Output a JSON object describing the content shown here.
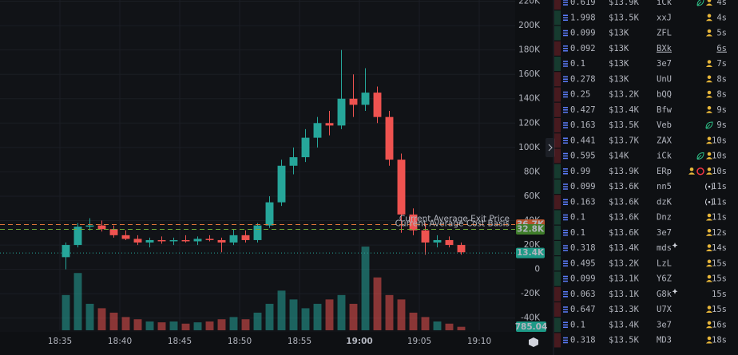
{
  "chart_data": {
    "type": "candlestick",
    "x": [
      "18:35",
      "18:36",
      "18:37",
      "18:38",
      "18:39",
      "18:40",
      "18:41",
      "18:42",
      "18:43",
      "18:44",
      "18:45",
      "18:46",
      "18:47",
      "18:48",
      "18:49",
      "18:50",
      "18:51",
      "18:52",
      "18:53",
      "18:54",
      "18:55",
      "18:56",
      "18:57",
      "18:58",
      "18:59",
      "19:00",
      "19:01",
      "19:02",
      "19:03",
      "19:04",
      "19:05",
      "19:06",
      "19:07",
      "19:08"
    ],
    "open": [
      10000,
      20000,
      35000,
      36000,
      33000,
      28000,
      25000,
      22000,
      24000,
      23000,
      24000,
      23000,
      25000,
      24000,
      22000,
      28000,
      24000,
      36000,
      55000,
      85000,
      92000,
      108000,
      120000,
      118000,
      140000,
      135000,
      145000,
      125000,
      90000,
      45000,
      32000,
      22000,
      24000,
      20000
    ],
    "high": [
      22000,
      38000,
      42000,
      40000,
      36000,
      32000,
      28000,
      26000,
      27000,
      26000,
      28000,
      27000,
      28000,
      26000,
      33000,
      32000,
      38000,
      60000,
      90000,
      100000,
      115000,
      125000,
      130000,
      180000,
      160000,
      165000,
      150000,
      130000,
      95000,
      50000,
      38000,
      28000,
      27000,
      22000
    ],
    "low": [
      0,
      18000,
      32000,
      31000,
      26000,
      24000,
      20000,
      18000,
      21000,
      20000,
      22000,
      20000,
      23000,
      14000,
      20000,
      22000,
      22000,
      34000,
      52000,
      78000,
      88000,
      100000,
      110000,
      115000,
      125000,
      130000,
      120000,
      85000,
      30000,
      28000,
      12000,
      18000,
      18000,
      12000
    ],
    "close": [
      20000,
      35000,
      36000,
      33000,
      28000,
      25000,
      22000,
      24000,
      23000,
      24000,
      23000,
      25000,
      24000,
      22000,
      28000,
      24000,
      36000,
      55000,
      85000,
      92000,
      108000,
      120000,
      118000,
      140000,
      135000,
      145000,
      125000,
      90000,
      45000,
      32000,
      22000,
      24000,
      20000,
      14000
    ],
    "volume": [
      8000,
      13000,
      6000,
      5000,
      4000,
      3000,
      2500,
      2000,
      1800,
      2000,
      1500,
      1800,
      2000,
      2500,
      3000,
      2500,
      4000,
      6000,
      9000,
      7000,
      5000,
      6000,
      7000,
      8000,
      6000,
      19000,
      12000,
      8000,
      7000,
      4000,
      3000,
      2000,
      1500,
      785.04
    ],
    "up_color": "#26a69a",
    "down_color": "#ef5350",
    "xlim": [
      "18:30",
      "19:13"
    ],
    "xticks": [
      "18:35",
      "18:40",
      "18:45",
      "18:50",
      "18:55",
      "19:00",
      "19:05",
      "19:10"
    ],
    "bold_xtick": "19:00",
    "ylim": [
      -50000,
      221000
    ],
    "yticks": [
      {
        "value": -40000,
        "label": "-40K"
      },
      {
        "value": -20000,
        "label": "-20K"
      },
      0,
      {
        "value": 20000,
        "label": "20K"
      },
      {
        "value": 40000,
        "label": "40K"
      },
      {
        "value": 60000,
        "label": "60K"
      },
      {
        "value": 80000,
        "label": "80K"
      },
      {
        "value": 100000,
        "label": "100K"
      },
      {
        "value": 120000,
        "label": "120K"
      },
      {
        "value": 140000,
        "label": "140K"
      },
      {
        "value": 160000,
        "label": "160K"
      },
      {
        "value": 180000,
        "label": "180K"
      },
      {
        "value": 200000,
        "label": "200K"
      },
      {
        "value": 220000,
        "label": "220K"
      }
    ],
    "y2lim": [
      0,
      75000
    ],
    "grid": true,
    "price_lines": [
      {
        "label": "Current Average Exit Price",
        "price": {
          "value": 36700,
          "label": "36.7K"
        },
        "color": "#e0763a",
        "box": "#b5532c"
      },
      {
        "label": "Current Average Cost Basis",
        "price": {
          "value": 32800,
          "label": "32.8K"
        },
        "color": "#6fa83a",
        "box": "#3f7d2a"
      },
      {
        "price": {
          "value": 13400,
          "label": "13.4K"
        },
        "color": "#26a69a",
        "box": "#1d9a87"
      }
    ]
  },
  "trades": {
    "rows": [
      {
        "amount": "0.619",
        "value": "$13.9K",
        "trader": "iCk",
        "age": "4s",
        "color": "#f23645",
        "icons": [
          "leaf",
          "person"
        ]
      },
      {
        "amount": "1.998",
        "value": "$13.5K",
        "trader": "xxJ",
        "age": "4s",
        "color": "#2ebd85",
        "icons": [
          "person"
        ]
      },
      {
        "amount": "0.099",
        "value": "$13K",
        "trader": "ZFL",
        "age": "5s",
        "color": "#2ebd85",
        "icons": [
          "person"
        ]
      },
      {
        "amount": "0.092",
        "value": "$13K",
        "trader": "BXk",
        "age": "6s",
        "color": "#f23645",
        "icons": [],
        "underline": true
      },
      {
        "amount": "0.1",
        "value": "$13K",
        "trader": "3e7",
        "age": "7s",
        "color": "#2ebd85",
        "icons": [
          "person"
        ]
      },
      {
        "amount": "0.278",
        "value": "$13K",
        "trader": "UnU",
        "age": "8s",
        "color": "#f23645",
        "icons": [
          "person"
        ]
      },
      {
        "amount": "0.25",
        "value": "$13.2K",
        "trader": "bQQ",
        "age": "8s",
        "color": "#f23645",
        "icons": [
          "person"
        ]
      },
      {
        "amount": "0.427",
        "value": "$13.4K",
        "trader": "Bfw",
        "age": "9s",
        "color": "#f23645",
        "icons": [
          "person"
        ]
      },
      {
        "amount": "0.163",
        "value": "$13.5K",
        "trader": "Veb",
        "age": "9s",
        "color": "#f23645",
        "icons": [
          "leaf"
        ]
      },
      {
        "amount": "0.441",
        "value": "$13.7K",
        "trader": "ZAX",
        "age": "10s",
        "color": "#f23645",
        "icons": [
          "person"
        ]
      },
      {
        "amount": "0.595",
        "value": "$14K",
        "trader": "iCk",
        "age": "10s",
        "color": "#f23645",
        "icons": [
          "leaf",
          "person"
        ]
      },
      {
        "amount": "0.99",
        "value": "$13.9K",
        "trader": "ERp",
        "age": "10s",
        "color": "#2ebd85",
        "icons": [
          "person",
          "target",
          "person"
        ]
      },
      {
        "amount": "0.099",
        "value": "$13.6K",
        "trader": "nn5",
        "age": "11s",
        "color": "#2ebd85",
        "icons": [
          "wave"
        ]
      },
      {
        "amount": "0.163",
        "value": "$13.6K",
        "trader": "dzK",
        "age": "11s",
        "color": "#f23645",
        "icons": [
          "wave"
        ]
      },
      {
        "amount": "0.1",
        "value": "$13.6K",
        "trader": "Dnz",
        "age": "11s",
        "color": "#2ebd85",
        "icons": [
          "person"
        ]
      },
      {
        "amount": "0.1",
        "value": "$13.6K",
        "trader": "3e7",
        "age": "12s",
        "color": "#2ebd85",
        "icons": [
          "person"
        ]
      },
      {
        "amount": "0.318",
        "value": "$13.4K",
        "trader": "mds",
        "age": "14s",
        "color": "#2ebd85",
        "icons": [
          "person"
        ],
        "starred": true
      },
      {
        "amount": "0.495",
        "value": "$13.2K",
        "trader": "LzL",
        "age": "15s",
        "color": "#2ebd85",
        "icons": [
          "person"
        ]
      },
      {
        "amount": "0.099",
        "value": "$13.1K",
        "trader": "Y6Z",
        "age": "15s",
        "color": "#2ebd85",
        "icons": [
          "person"
        ]
      },
      {
        "amount": "0.063",
        "value": "$13.1K",
        "trader": "G8k",
        "age": "15s",
        "color": "#f23645",
        "icons": [],
        "starred": true
      },
      {
        "amount": "0.647",
        "value": "$13.3K",
        "trader": "U7X",
        "age": "15s",
        "color": "#f23645",
        "icons": [
          "person"
        ]
      },
      {
        "amount": "0.1",
        "value": "$13.4K",
        "trader": "3e7",
        "age": "16s",
        "color": "#2ebd85",
        "icons": [
          "person"
        ]
      },
      {
        "amount": "0.318",
        "value": "$13.5K",
        "trader": "MD3",
        "age": "18s",
        "color": "#f23645",
        "icons": [
          "person"
        ]
      }
    ]
  }
}
